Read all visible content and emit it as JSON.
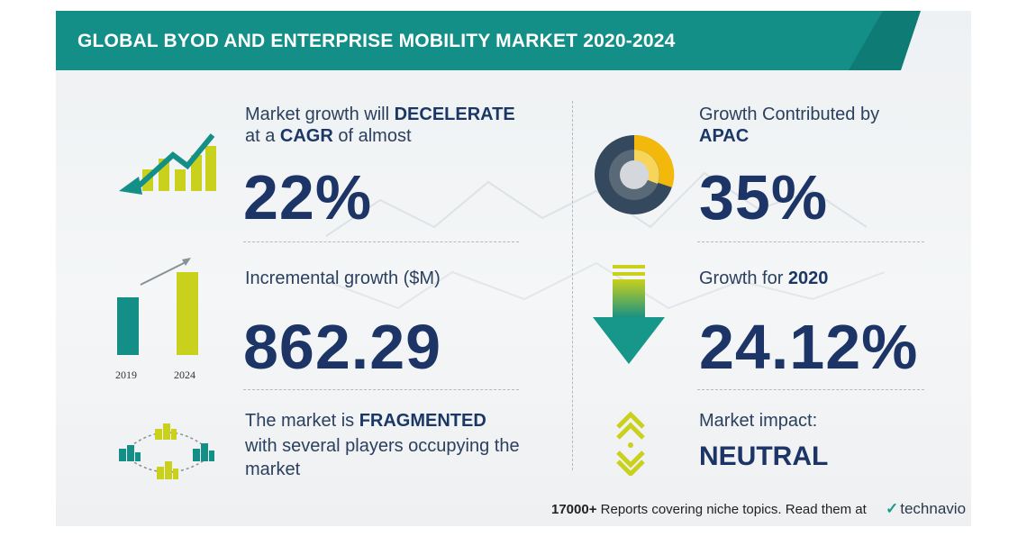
{
  "header": {
    "title": "GLOBAL BYOD AND ENTERPRISE MOBILITY MARKET 2020-2024"
  },
  "cagr": {
    "prefix": "Market growth will ",
    "emphasis": "DECELERATE",
    "line2_prefix": "at a ",
    "line2_emphasis": "CAGR",
    "line2_suffix": " of almost",
    "value": "22%"
  },
  "apac": {
    "line1": "Growth Contributed by",
    "region": "APAC",
    "value": "35%"
  },
  "incremental": {
    "label": "Incremental growth ($M)",
    "value": "862.29",
    "year_start": "2019",
    "year_end": "2024"
  },
  "growth_year": {
    "prefix": "Growth for ",
    "year": "2020",
    "value": "24.12%"
  },
  "fragmented": {
    "prefix": "The market is ",
    "emphasis": "FRAGMENTED",
    "line2": "with several players occupying the",
    "line3": "market"
  },
  "impact": {
    "label": "Market impact:",
    "value": "NEUTRAL"
  },
  "footer": {
    "count": "17000+",
    "text": " Reports covering niche topics. Read them at",
    "brand": "technavio"
  },
  "colors": {
    "teal": "#138f88",
    "yellow": "#c9d11c",
    "navy": "#1c3466",
    "donut_dark": "#34495e",
    "donut_yellow": "#f2b90c"
  },
  "icons": [
    "trend-down-icon",
    "donut-chart-icon",
    "bar-growth-icon",
    "down-arrow-icon",
    "network-icon",
    "neutral-arrows-icon"
  ]
}
